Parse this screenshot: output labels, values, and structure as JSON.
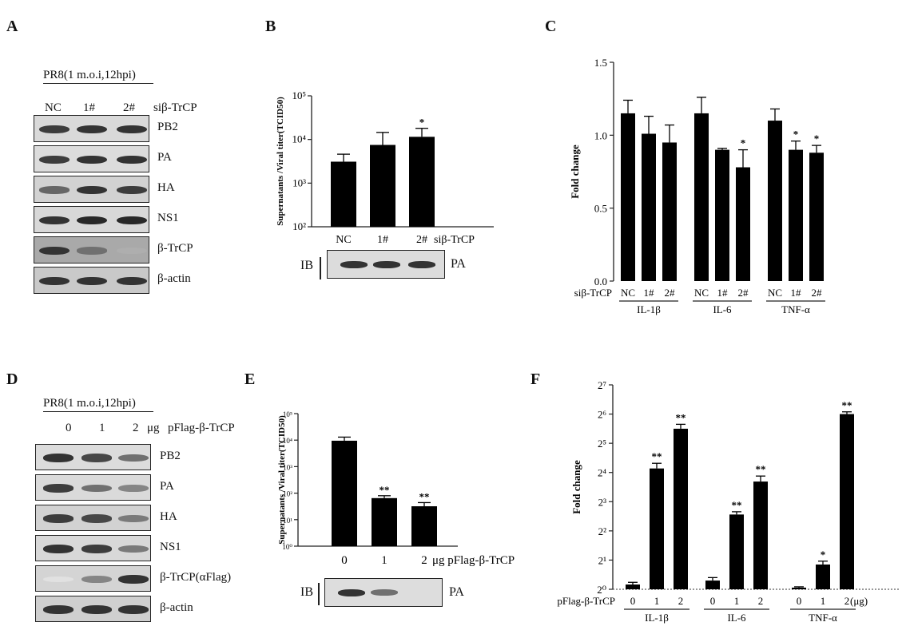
{
  "panels": {
    "A": {
      "letter": "A",
      "condition": "PR8(1 m.o.i,12hpi)",
      "lanes": [
        "NC",
        "1#",
        "2#"
      ],
      "treatment": "siβ-TrCP",
      "blots": [
        {
          "label": "PB2",
          "levels": [
            0.85,
            0.9,
            0.9
          ],
          "bg": "#d9d9d9"
        },
        {
          "label": "PA",
          "levels": [
            0.85,
            0.9,
            0.9
          ],
          "bg": "#dcdcdc"
        },
        {
          "label": "HA",
          "levels": [
            0.65,
            0.9,
            0.85
          ],
          "bg": "#d2d2d2"
        },
        {
          "label": "NS1",
          "levels": [
            0.9,
            0.95,
            0.95
          ],
          "bg": "#d8d8d8"
        },
        {
          "label": "β-TrCP",
          "levels": [
            0.9,
            0.6,
            0.3
          ],
          "bg": "#a9a9a9"
        },
        {
          "label": "β-actin",
          "levels": [
            0.9,
            0.9,
            0.9
          ],
          "bg": "#c9c9c9"
        }
      ]
    },
    "B": {
      "letter": "B",
      "ib": "IB",
      "pa": "PA",
      "pa_levels": [
        0.9,
        0.9,
        0.9
      ]
    },
    "C": {
      "letter": "C"
    },
    "D": {
      "letter": "D",
      "condition": "PR8(1 m.o.i,12hpi)",
      "lanes": [
        "0",
        "1",
        "2"
      ],
      "unit": "μg",
      "treatment": "pFlag-β-TrCP",
      "blots": [
        {
          "label": "PB2",
          "levels": [
            0.9,
            0.8,
            0.6
          ],
          "bg": "#dcdcdc"
        },
        {
          "label": "PA",
          "levels": [
            0.85,
            0.6,
            0.5
          ],
          "bg": "#dadada"
        },
        {
          "label": "HA",
          "levels": [
            0.85,
            0.8,
            0.55
          ],
          "bg": "#d2d2d2"
        },
        {
          "label": "NS1",
          "levels": [
            0.9,
            0.85,
            0.55
          ],
          "bg": "#d8d8d8"
        },
        {
          "label": "β-TrCP(αFlag)",
          "levels": [
            0.05,
            0.5,
            0.9
          ],
          "bg": "#d4d4d4"
        },
        {
          "label": "β-actin",
          "levels": [
            0.9,
            0.9,
            0.9
          ],
          "bg": "#cfcfcf"
        }
      ]
    },
    "E": {
      "letter": "E",
      "ib": "IB",
      "pa": "PA",
      "pa_levels": [
        0.9,
        0.6,
        0.0
      ]
    },
    "F": {
      "letter": "F"
    }
  },
  "chart_data": [
    {
      "id": "B",
      "type": "bar",
      "ylabel": "Supernatants /Viral titer(TCID50)",
      "yscale": "log10",
      "ylim": [
        100,
        100000
      ],
      "yticks": [
        "10²",
        "10³",
        "10⁴",
        "10⁵"
      ],
      "categories": [
        "NC",
        "1#",
        "2#"
      ],
      "xsuffix": "siβ-TrCP",
      "values": [
        3100,
        7500,
        11500
      ],
      "errors": [
        1500,
        7000,
        6500
      ],
      "significance": [
        "",
        "",
        "*"
      ]
    },
    {
      "id": "C",
      "type": "bar",
      "ylabel": "Fold change",
      "ylim": [
        0.0,
        1.5
      ],
      "yticks": [
        "0.0",
        "0.5",
        "1.0",
        "1.5"
      ],
      "row_label": "siβ-TrCP",
      "groups": [
        {
          "name": "IL-1β",
          "categories": [
            "NC",
            "1#",
            "2#"
          ],
          "values": [
            1.15,
            1.01,
            0.95
          ],
          "errors": [
            0.09,
            0.12,
            0.12
          ],
          "significance": [
            "",
            "",
            ""
          ]
        },
        {
          "name": "IL-6",
          "categories": [
            "NC",
            "1#",
            "2#"
          ],
          "values": [
            1.15,
            0.9,
            0.78
          ],
          "errors": [
            0.11,
            0.01,
            0.12
          ],
          "significance": [
            "",
            "",
            "*"
          ]
        },
        {
          "name": "TNF-α",
          "categories": [
            "NC",
            "1#",
            "2#"
          ],
          "values": [
            1.1,
            0.9,
            0.88
          ],
          "errors": [
            0.08,
            0.06,
            0.05
          ],
          "significance": [
            "",
            "*",
            "*"
          ]
        }
      ]
    },
    {
      "id": "E",
      "type": "bar",
      "ylabel": "Supernatants /Viral titer(TCID50)",
      "yscale": "log10",
      "ylim": [
        1,
        100000
      ],
      "yticks": [
        "10⁰",
        "10¹",
        "10²",
        "10³",
        "10⁴",
        "10⁵"
      ],
      "categories": [
        "0",
        "1",
        "2"
      ],
      "xsuffix": "μg pFlag-β-TrCP",
      "values": [
        9500,
        65,
        32
      ],
      "errors": [
        3500,
        15,
        12
      ],
      "significance": [
        "",
        "**",
        "**"
      ]
    },
    {
      "id": "F",
      "type": "bar",
      "ylabel": "Fold change",
      "yscale": "log2",
      "ylim": [
        0,
        7
      ],
      "yticks": [
        "2⁰",
        "2¹",
        "2²",
        "2³",
        "2⁴",
        "2⁵",
        "2⁶",
        "2⁷"
      ],
      "reference_line": 1,
      "row_label": "pFlag-β-TrCP",
      "unit": "(μg)",
      "groups": [
        {
          "name": "IL-1β",
          "categories": [
            "0",
            "1",
            "2"
          ],
          "values": [
            1.12,
            17.6,
            45.2
          ],
          "errors": [
            0.06,
            2.3,
            5.0
          ],
          "significance": [
            "",
            "**",
            "**"
          ]
        },
        {
          "name": "IL-6",
          "categories": [
            "0",
            "1",
            "2"
          ],
          "values": [
            1.23,
            5.9,
            12.9
          ],
          "errors": [
            0.09,
            0.4,
            1.8
          ],
          "significance": [
            "",
            "**",
            "**"
          ]
        },
        {
          "name": "TNF-α",
          "categories": [
            "0",
            "1",
            "2"
          ],
          "values": [
            1.04,
            1.8,
            64.0
          ],
          "errors": [
            0.02,
            0.15,
            3.5
          ],
          "significance": [
            "",
            "*",
            "**"
          ]
        }
      ]
    }
  ]
}
